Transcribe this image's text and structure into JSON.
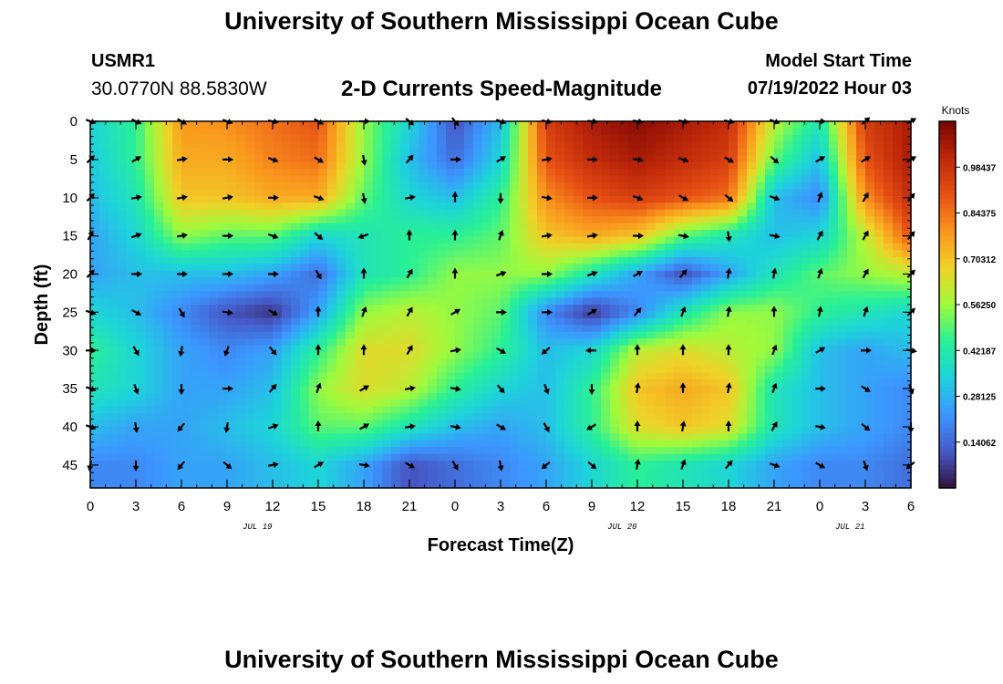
{
  "header": {
    "title": "University of Southern Mississippi Ocean Cube",
    "station_id": "USMR1",
    "station_coords": "30.0770N  88.5830W",
    "subtitle": "2-D Currents Speed-Magnitude",
    "model_start_label": "Model Start Time",
    "model_start_value": "07/19/2022 Hour 03"
  },
  "footer": {
    "title": "University of Southern Mississippi Ocean Cube"
  },
  "chart_data": {
    "type": "heatmap",
    "title": "2-D Currents Speed-Magnitude",
    "xlabel": "Forecast Time(Z)",
    "ylabel": "Depth (ft)",
    "x_tick_labels": [
      "0",
      "3",
      "6",
      "9",
      "12",
      "15",
      "18",
      "21",
      "0",
      "3",
      "6",
      "9",
      "12",
      "15",
      "18",
      "21",
      "0",
      "3",
      "6"
    ],
    "x_range_hours": [
      0,
      54
    ],
    "date_labels": [
      {
        "text": "JUL 19",
        "hour": 11
      },
      {
        "text": "JUL 20",
        "hour": 35
      },
      {
        "text": "JUL 21",
        "hour": 50
      }
    ],
    "y_ticks": [
      0,
      5,
      10,
      15,
      20,
      25,
      30,
      35,
      40,
      45
    ],
    "y_range": [
      0,
      48
    ],
    "colorbar": {
      "label": "Knots",
      "range": [
        0,
        1.125
      ],
      "ticks": [
        0.140625,
        0.28125,
        0.421875,
        0.5625,
        0.703125,
        0.84375,
        0.984375
      ],
      "tick_labels": [
        "0.14062",
        "0.28125",
        "0.42187",
        "0.56250",
        "0.70312",
        "0.84375",
        "0.98437"
      ]
    },
    "speed_grid": {
      "x_hours": [
        0,
        3,
        6,
        9,
        12,
        15,
        18,
        21,
        24,
        27,
        30,
        33,
        36,
        39,
        42,
        45,
        48,
        51,
        54
      ],
      "depths": [
        0,
        5,
        10,
        15,
        20,
        25,
        30,
        35,
        40,
        45
      ],
      "values": [
        [
          0.35,
          0.45,
          0.78,
          0.8,
          0.85,
          0.9,
          0.55,
          0.35,
          0.1,
          0.3,
          0.95,
          1.05,
          1.1,
          1.05,
          1.0,
          0.6,
          0.4,
          0.95,
          1.05
        ],
        [
          0.32,
          0.45,
          0.75,
          0.75,
          0.82,
          0.85,
          0.55,
          0.3,
          0.15,
          0.35,
          0.9,
          1.0,
          1.05,
          1.0,
          0.95,
          0.5,
          0.3,
          0.9,
          1.05
        ],
        [
          0.3,
          0.4,
          0.7,
          0.7,
          0.75,
          0.75,
          0.5,
          0.35,
          0.3,
          0.45,
          0.8,
          0.9,
          0.95,
          0.9,
          0.85,
          0.3,
          0.2,
          0.8,
          1.0
        ],
        [
          0.25,
          0.35,
          0.55,
          0.5,
          0.5,
          0.35,
          0.4,
          0.45,
          0.45,
          0.5,
          0.7,
          0.75,
          0.7,
          0.5,
          0.4,
          0.3,
          0.35,
          0.6,
          0.9
        ],
        [
          0.25,
          0.3,
          0.3,
          0.3,
          0.25,
          0.15,
          0.4,
          0.45,
          0.55,
          0.55,
          0.55,
          0.4,
          0.25,
          0.1,
          0.25,
          0.4,
          0.5,
          0.55,
          0.6
        ],
        [
          0.35,
          0.3,
          0.2,
          0.1,
          0.05,
          0.25,
          0.55,
          0.6,
          0.55,
          0.5,
          0.2,
          0.05,
          0.2,
          0.4,
          0.55,
          0.55,
          0.45,
          0.4,
          0.35
        ],
        [
          0.45,
          0.35,
          0.25,
          0.2,
          0.25,
          0.45,
          0.65,
          0.65,
          0.55,
          0.45,
          0.3,
          0.35,
          0.6,
          0.65,
          0.6,
          0.55,
          0.3,
          0.25,
          0.3
        ],
        [
          0.4,
          0.35,
          0.25,
          0.25,
          0.3,
          0.55,
          0.65,
          0.6,
          0.45,
          0.35,
          0.3,
          0.45,
          0.7,
          0.75,
          0.7,
          0.4,
          0.3,
          0.25,
          0.2
        ],
        [
          0.3,
          0.25,
          0.25,
          0.3,
          0.35,
          0.5,
          0.5,
          0.4,
          0.3,
          0.25,
          0.3,
          0.45,
          0.65,
          0.7,
          0.65,
          0.4,
          0.3,
          0.25,
          0.2
        ],
        [
          0.2,
          0.2,
          0.25,
          0.25,
          0.3,
          0.35,
          0.25,
          0.1,
          0.15,
          0.2,
          0.25,
          0.35,
          0.45,
          0.4,
          0.35,
          0.25,
          0.2,
          0.2,
          0.15
        ]
      ]
    },
    "direction_grid_deg": [
      [
        110,
        115,
        120,
        110,
        100,
        120,
        90,
        130,
        140,
        110,
        100,
        95,
        100,
        100,
        100,
        110,
        90,
        50,
        60
      ],
      [
        45,
        60,
        80,
        90,
        110,
        120,
        170,
        40,
        90,
        60,
        80,
        90,
        100,
        110,
        120,
        130,
        60,
        60,
        60
      ],
      [
        45,
        80,
        80,
        80,
        90,
        110,
        170,
        80,
        0,
        180,
        100,
        90,
        110,
        120,
        130,
        110,
        20,
        30,
        40
      ],
      [
        30,
        70,
        80,
        90,
        110,
        130,
        250,
        0,
        0,
        20,
        80,
        80,
        90,
        100,
        170,
        100,
        30,
        30,
        40
      ],
      [
        45,
        90,
        90,
        90,
        90,
        150,
        0,
        30,
        0,
        70,
        90,
        70,
        60,
        40,
        10,
        10,
        20,
        30,
        45
      ],
      [
        110,
        120,
        150,
        100,
        120,
        0,
        20,
        30,
        60,
        90,
        90,
        60,
        40,
        20,
        10,
        0,
        10,
        20,
        45
      ],
      [
        90,
        150,
        190,
        200,
        140,
        0,
        0,
        30,
        80,
        120,
        230,
        270,
        0,
        0,
        0,
        20,
        60,
        90,
        100
      ],
      [
        110,
        160,
        180,
        90,
        40,
        20,
        60,
        80,
        100,
        140,
        160,
        180,
        10,
        0,
        10,
        20,
        90,
        120,
        160
      ],
      [
        110,
        170,
        220,
        190,
        70,
        0,
        60,
        80,
        100,
        120,
        150,
        240,
        0,
        10,
        0,
        30,
        100,
        130,
        180
      ],
      [
        190,
        180,
        220,
        130,
        80,
        60,
        100,
        120,
        150,
        170,
        230,
        130,
        10,
        20,
        40,
        110,
        120,
        160,
        230
      ]
    ]
  }
}
